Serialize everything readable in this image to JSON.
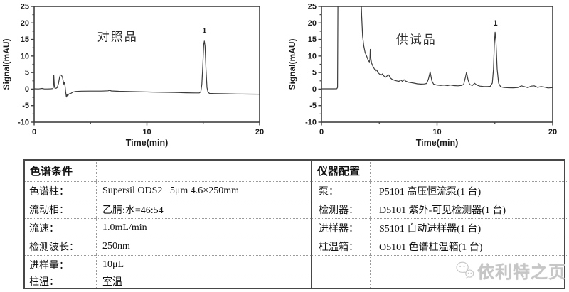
{
  "page": {
    "background": "#ffffff",
    "trace_color": "#3c3c3c",
    "axis_color": "#3f3f3f",
    "watermark_color": "#c6c6c6"
  },
  "chart_data": [
    {
      "type": "line",
      "title": "对照品",
      "xlabel": "Time(min)",
      "ylabel": "Signal(mAU)",
      "xlim": [
        0,
        20
      ],
      "ylim": [
        -10,
        25
      ],
      "xticks_major": [
        0,
        10,
        20
      ],
      "xticks_minor": [
        5,
        15
      ],
      "yticks_major": [
        -10,
        -5,
        0,
        5,
        10,
        15,
        20,
        25
      ],
      "yticks_minor": [
        -7.5,
        -2.5,
        2.5,
        7.5,
        12.5,
        17.5,
        22.5
      ],
      "grid": false,
      "annotation": {
        "text": "对照品",
        "x": 7.4,
        "y": 14.6
      },
      "peak_label": {
        "text": "1",
        "x": 15.1,
        "y": 16.9
      },
      "points": [
        [
          0,
          0.1
        ],
        [
          0.4,
          0.05
        ],
        [
          0.7,
          0.2
        ],
        [
          0.9,
          0.05
        ],
        [
          1.2,
          0.05
        ],
        [
          1.5,
          0.1
        ],
        [
          1.65,
          0.15
        ],
        [
          1.7,
          0.5
        ],
        [
          1.74,
          4.2
        ],
        [
          1.79,
          1.0
        ],
        [
          1.84,
          0.3
        ],
        [
          1.95,
          0.25
        ],
        [
          2.05,
          0.5
        ],
        [
          2.15,
          1.6
        ],
        [
          2.25,
          3.5
        ],
        [
          2.33,
          4.3
        ],
        [
          2.42,
          4.2
        ],
        [
          2.52,
          3.5
        ],
        [
          2.58,
          2.4
        ],
        [
          2.63,
          1.5
        ],
        [
          2.68,
          2.0
        ],
        [
          2.73,
          1.3
        ],
        [
          2.79,
          -0.6
        ],
        [
          2.86,
          -2.4
        ],
        [
          2.92,
          -1.7
        ],
        [
          2.98,
          -2.1
        ],
        [
          3.05,
          -1.6
        ],
        [
          3.12,
          -1.4
        ],
        [
          3.2,
          -1.55
        ],
        [
          3.3,
          -1.2
        ],
        [
          3.45,
          -0.9
        ],
        [
          3.7,
          -0.7
        ],
        [
          4.2,
          -0.62
        ],
        [
          5,
          -0.6
        ],
        [
          6,
          -0.6
        ],
        [
          6.55,
          -0.5
        ],
        [
          6.7,
          -0.38
        ],
        [
          6.85,
          -0.55
        ],
        [
          7.5,
          -0.65
        ],
        [
          8.5,
          -0.75
        ],
        [
          9.5,
          -0.82
        ],
        [
          10.5,
          -0.9
        ],
        [
          11.5,
          -0.97
        ],
        [
          12.5,
          -1.03
        ],
        [
          13.5,
          -1.1
        ],
        [
          14.3,
          -1.15
        ],
        [
          14.65,
          -1.15
        ],
        [
          14.78,
          -0.8
        ],
        [
          14.88,
          1.5
        ],
        [
          14.96,
          7
        ],
        [
          15.04,
          13.5
        ],
        [
          15.1,
          14.5
        ],
        [
          15.16,
          13
        ],
        [
          15.24,
          6
        ],
        [
          15.33,
          0.5
        ],
        [
          15.42,
          -0.9
        ],
        [
          15.55,
          -1.3
        ],
        [
          16,
          -1.35
        ],
        [
          17,
          -1.42
        ],
        [
          18,
          -1.48
        ],
        [
          19,
          -1.52
        ],
        [
          20,
          -1.55
        ]
      ]
    },
    {
      "type": "line",
      "title": "供试品",
      "xlabel": "Time(min)",
      "ylabel": "Signal(mAU)",
      "xlim": [
        0,
        20
      ],
      "ylim": [
        -10,
        25
      ],
      "xticks_major": [
        0,
        10,
        20
      ],
      "xticks_minor": [
        5,
        15
      ],
      "yticks_major": [
        -10,
        -5,
        0,
        5,
        10,
        15,
        20,
        25
      ],
      "yticks_minor": [
        -7.5,
        -2.5,
        2.5,
        7.5,
        12.5,
        17.5,
        22.5
      ],
      "grid": false,
      "annotation": {
        "text": "供试品",
        "x": 8.2,
        "y": 13.7
      },
      "peak_label": {
        "text": "1",
        "x": 15.05,
        "y": 19.2
      },
      "points": [
        [
          0,
          0.1
        ],
        [
          0.6,
          0.1
        ],
        [
          1.1,
          0.1
        ],
        [
          1.32,
          0.12
        ],
        [
          1.39,
          0.5
        ],
        [
          1.43,
          30
        ],
        [
          3.4,
          30
        ],
        [
          3.48,
          22
        ],
        [
          3.56,
          16
        ],
        [
          3.66,
          13
        ],
        [
          3.78,
          11
        ],
        [
          3.9,
          10
        ],
        [
          4.0,
          9.1
        ],
        [
          4.08,
          8.5
        ],
        [
          4.15,
          8.2
        ],
        [
          4.19,
          9.0
        ],
        [
          4.22,
          12
        ],
        [
          4.26,
          9.6
        ],
        [
          4.33,
          7.9
        ],
        [
          4.45,
          6.9
        ],
        [
          4.58,
          6.1
        ],
        [
          4.68,
          5.5
        ],
        [
          4.78,
          5.8
        ],
        [
          4.88,
          5.0
        ],
        [
          5.0,
          4.6
        ],
        [
          5.15,
          4.2
        ],
        [
          5.28,
          4.6
        ],
        [
          5.42,
          3.9
        ],
        [
          5.55,
          3.6
        ],
        [
          5.68,
          4.0
        ],
        [
          5.82,
          4.3
        ],
        [
          5.95,
          3.4
        ],
        [
          6.1,
          3.0
        ],
        [
          6.3,
          2.7
        ],
        [
          6.5,
          2.5
        ],
        [
          6.7,
          2.35
        ],
        [
          6.88,
          2.75
        ],
        [
          7.0,
          2.3
        ],
        [
          7.15,
          2.85
        ],
        [
          7.3,
          2.4
        ],
        [
          7.5,
          2.1
        ],
        [
          7.75,
          1.95
        ],
        [
          8.0,
          1.8
        ],
        [
          8.3,
          1.6
        ],
        [
          8.6,
          1.5
        ],
        [
          8.9,
          1.55
        ],
        [
          9.1,
          1.7
        ],
        [
          9.25,
          3.0
        ],
        [
          9.4,
          5.2
        ],
        [
          9.55,
          2.5
        ],
        [
          9.7,
          1.5
        ],
        [
          9.95,
          1.25
        ],
        [
          10.3,
          1.1
        ],
        [
          10.6,
          1.2
        ],
        [
          10.9,
          1.05
        ],
        [
          11.15,
          1.25
        ],
        [
          11.45,
          1.05
        ],
        [
          11.8,
          1.0
        ],
        [
          12.1,
          1.1
        ],
        [
          12.3,
          1.4
        ],
        [
          12.45,
          3.5
        ],
        [
          12.55,
          5.1
        ],
        [
          12.68,
          2.8
        ],
        [
          12.82,
          1.4
        ],
        [
          13.05,
          1.1
        ],
        [
          13.25,
          1.75
        ],
        [
          13.45,
          1.2
        ],
        [
          13.7,
          0.9
        ],
        [
          14.0,
          0.8
        ],
        [
          14.35,
          0.75
        ],
        [
          14.6,
          0.85
        ],
        [
          14.78,
          1.8
        ],
        [
          14.88,
          6
        ],
        [
          14.96,
          14
        ],
        [
          15.02,
          17.2
        ],
        [
          15.1,
          14
        ],
        [
          15.2,
          6
        ],
        [
          15.32,
          1.8
        ],
        [
          15.5,
          0.7
        ],
        [
          15.8,
          0.5
        ],
        [
          16.2,
          0.42
        ],
        [
          16.6,
          0.4
        ],
        [
          17.0,
          0.5
        ],
        [
          17.3,
          1.0
        ],
        [
          17.55,
          0.75
        ],
        [
          17.85,
          0.45
        ],
        [
          18.15,
          0.9
        ],
        [
          18.4,
          1.0
        ],
        [
          18.7,
          0.55
        ],
        [
          19.0,
          0.75
        ],
        [
          19.25,
          0.65
        ],
        [
          19.6,
          0.35
        ],
        [
          20,
          0.45
        ]
      ]
    }
  ],
  "tables": {
    "left": {
      "header": "色谱条件",
      "rows": [
        {
          "label": "色谱柱：",
          "value": "Supersil ODS2   5μm 4.6×250mm"
        },
        {
          "label": "流动相：",
          "value": "乙腈:水=46:54"
        },
        {
          "label": "流速：",
          "value": "1.0mL/min"
        },
        {
          "label": "检测波长：",
          "value": "250nm"
        },
        {
          "label": "进样量：",
          "value": "10μL"
        },
        {
          "label": "柱温：",
          "value": "室温"
        }
      ]
    },
    "right": {
      "header": "仪器配置",
      "rows": [
        {
          "label": "泵：",
          "value": "P5101 高压恒流泵(1 台)"
        },
        {
          "label": "检测器：",
          "value": "D5101 紫外-可见检测器(1 台)"
        },
        {
          "label": "进样器：",
          "value": "S5101 自动进样器(1 台)"
        },
        {
          "label": "柱温箱：",
          "value": "O5101 色谱柱温箱(1 台)"
        }
      ]
    }
  },
  "watermark": {
    "text": "依利特之页",
    "icon": "wechat-chat-bubbles-icon"
  }
}
